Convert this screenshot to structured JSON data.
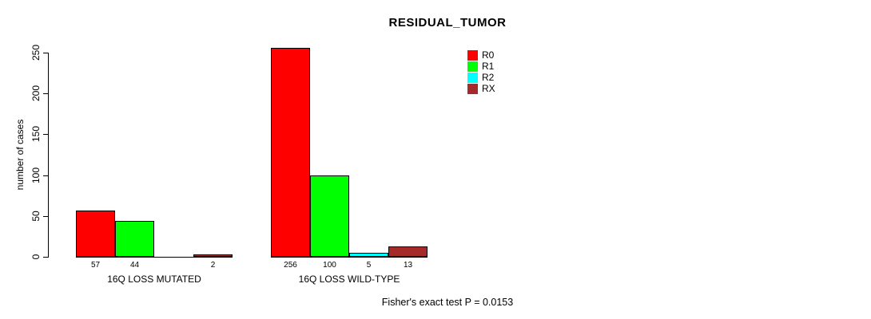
{
  "chart_data": {
    "type": "bar",
    "title": "RESIDUAL_TUMOR",
    "ylabel": "number of cases",
    "footer": "Fisher's exact test P = 0.0153",
    "ylim": [
      0,
      250
    ],
    "yticks": [
      0,
      50,
      100,
      150,
      200,
      250
    ],
    "categories": [
      "16Q LOSS MUTATED",
      "16Q LOSS WILD-TYPE"
    ],
    "series": [
      {
        "name": "R0",
        "color": "#FF0000",
        "values": [
          57,
          256
        ]
      },
      {
        "name": "R1",
        "color": "#00FF00",
        "values": [
          44,
          100
        ]
      },
      {
        "name": "R2",
        "color": "#00FFFF",
        "values": [
          0,
          5
        ]
      },
      {
        "name": "RX",
        "color": "#A52A2A",
        "values": [
          2,
          13
        ]
      }
    ],
    "value_labels": [
      [
        "57",
        "44",
        "",
        "2"
      ],
      [
        "256",
        "100",
        "5",
        "13"
      ]
    ],
    "legend": {
      "position": "top-right",
      "entries": [
        "R0",
        "R1",
        "R2",
        "RX"
      ]
    },
    "grid": false,
    "background": "#FFFFFF"
  }
}
